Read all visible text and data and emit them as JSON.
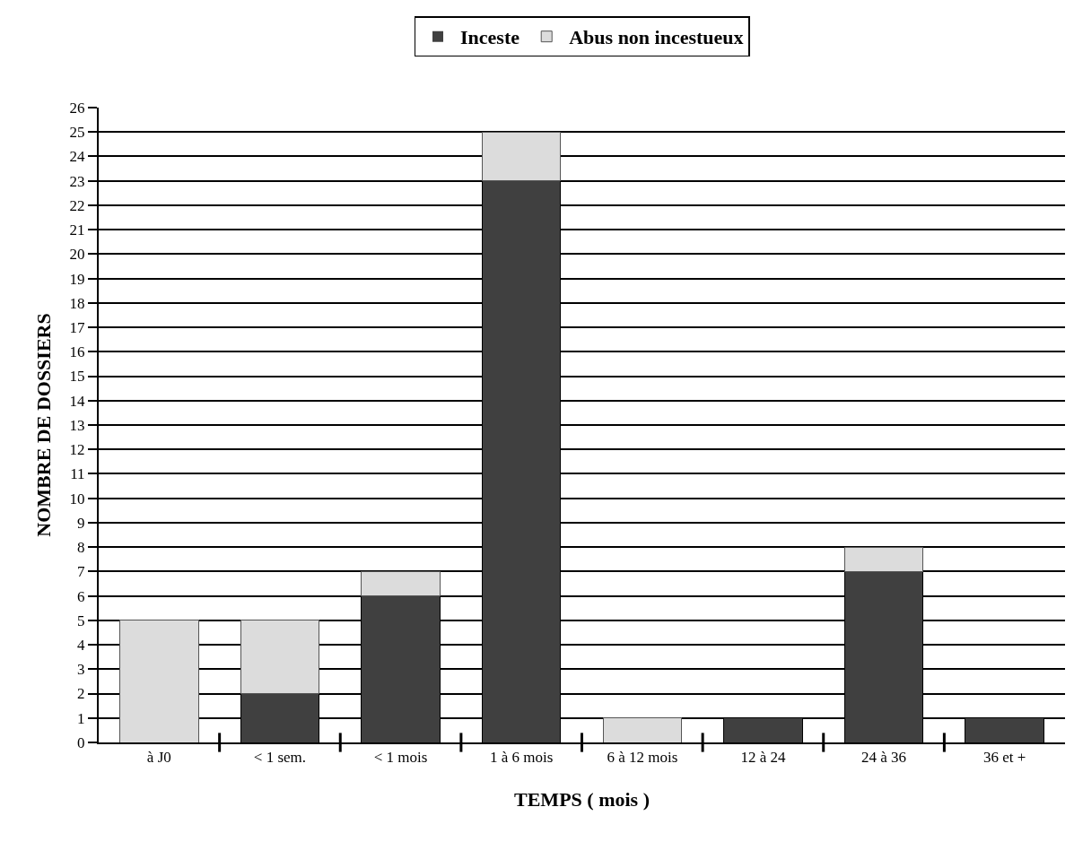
{
  "chart_data": {
    "type": "bar",
    "xlabel": "TEMPS ( mois )",
    "ylabel": "NOMBRE DE DOSSIERS",
    "categories": [
      "à J0",
      "< 1 sem.",
      "< 1 mois",
      "1 à 6 mois",
      "6 à 12 mois",
      "12 à 24",
      "24 à 36",
      "36 et +"
    ],
    "series": [
      {
        "name": "Inceste",
        "color": "#404040",
        "values": [
          0,
          2,
          6,
          23,
          0,
          1,
          7,
          1
        ]
      },
      {
        "name": "Abus non incestueux",
        "color": "#dcdcdc",
        "values": [
          5,
          3,
          1,
          2,
          1,
          0,
          1,
          0
        ]
      }
    ],
    "stacked": true,
    "ylim": [
      0,
      26
    ],
    "yticks": [
      0,
      1,
      2,
      3,
      4,
      5,
      6,
      7,
      8,
      9,
      10,
      11,
      12,
      13,
      14,
      15,
      16,
      17,
      18,
      19,
      20,
      21,
      22,
      23,
      24,
      25,
      26
    ],
    "grid": "y",
    "legend": "top"
  }
}
